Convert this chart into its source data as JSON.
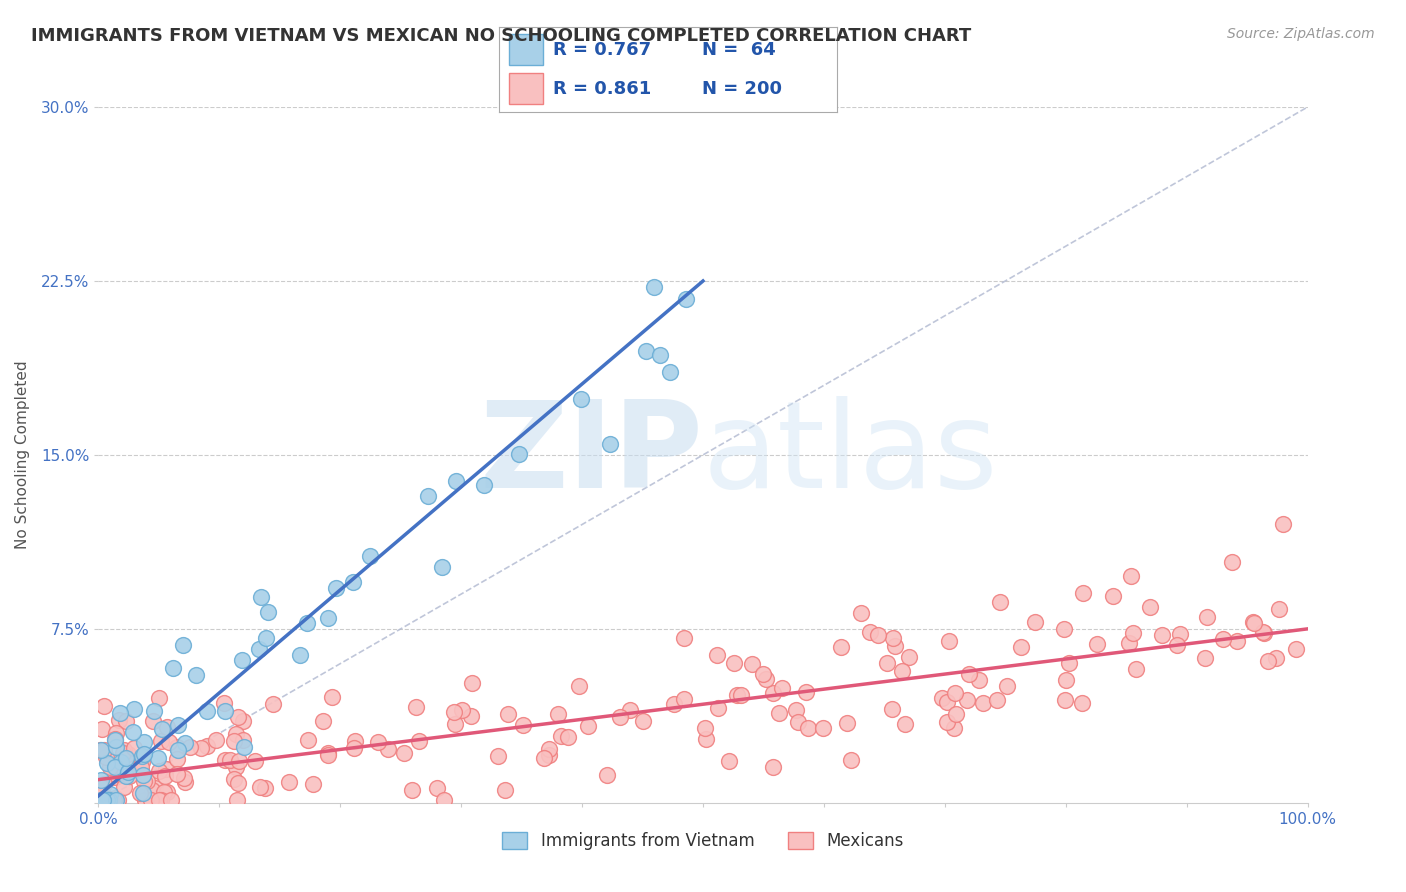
{
  "title": "IMMIGRANTS FROM VIETNAM VS MEXICAN NO SCHOOLING COMPLETED CORRELATION CHART",
  "source": "Source: ZipAtlas.com",
  "ylabel": "No Schooling Completed",
  "xlim": [
    0.0,
    1.0
  ],
  "ylim": [
    0.0,
    0.3
  ],
  "xticks": [
    0.0,
    0.1,
    0.2,
    0.3,
    0.4,
    0.5,
    0.6,
    0.7,
    0.8,
    0.9,
    1.0
  ],
  "xticklabels": [
    "0.0%",
    "",
    "",
    "",
    "",
    "",
    "",
    "",
    "",
    "",
    "100.0%"
  ],
  "yticks": [
    0.0,
    0.075,
    0.15,
    0.225,
    0.3
  ],
  "yticklabels": [
    "",
    "7.5%",
    "15.0%",
    "22.5%",
    "30.0%"
  ],
  "vietnam_color": "#6baed6",
  "vietnam_fill": "#a8d0e8",
  "mexican_color": "#f08080",
  "mexican_fill": "#f9c0c0",
  "vietnam_R": 0.767,
  "vietnam_N": 64,
  "mexican_R": 0.861,
  "mexican_N": 200,
  "legend_label_vietnam": "Immigrants from Vietnam",
  "legend_label_mexican": "Mexicans",
  "watermark_zip": "ZIP",
  "watermark_atlas": "atlas",
  "background_color": "#ffffff",
  "grid_color": "#cccccc",
  "title_color": "#333333",
  "tick_color": "#4472c4",
  "vietnam_line_x": [
    0.0,
    0.5
  ],
  "vietnam_line_y": [
    0.003,
    0.225
  ],
  "mexican_line_x": [
    0.0,
    1.0
  ],
  "mexican_line_y": [
    0.01,
    0.075
  ],
  "diag_line_x": [
    0.0,
    1.0
  ],
  "diag_line_y": [
    0.0,
    0.3
  ]
}
